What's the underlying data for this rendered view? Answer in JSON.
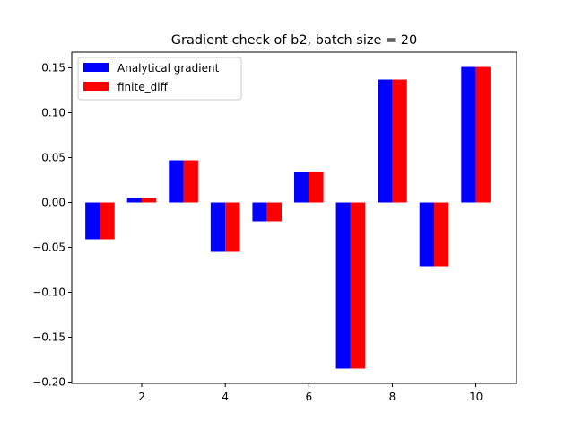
{
  "chart_data": {
    "type": "bar",
    "title": "Gradient check of b2, batch size = 20",
    "xlabel": "",
    "ylabel": "",
    "x": [
      1,
      2,
      3,
      4,
      5,
      6,
      7,
      8,
      9,
      10
    ],
    "xlim": [
      0.325,
      10.975
    ],
    "ylim": [
      -0.2015,
      0.1675
    ],
    "xticks": [
      2,
      4,
      6,
      8,
      10
    ],
    "yticks": [
      -0.2,
      -0.15,
      -0.1,
      -0.05,
      0.0,
      0.05,
      0.1,
      0.15
    ],
    "ytick_labels": [
      "−0.20",
      "−0.15",
      "−0.10",
      "−0.05",
      "0.00",
      "0.05",
      "0.10",
      "0.15"
    ],
    "bar_width": 0.35,
    "grid": false,
    "legend_position": "upper-left",
    "series": [
      {
        "name": "Analytical gradient",
        "color": "#0000ff",
        "values": [
          -0.041,
          0.005,
          0.047,
          -0.055,
          -0.021,
          0.034,
          -0.185,
          0.137,
          -0.071,
          0.151
        ]
      },
      {
        "name": "finite_diff",
        "color": "#ff0000",
        "values": [
          -0.041,
          0.005,
          0.047,
          -0.055,
          -0.021,
          0.034,
          -0.185,
          0.137,
          -0.071,
          0.151
        ]
      }
    ]
  }
}
